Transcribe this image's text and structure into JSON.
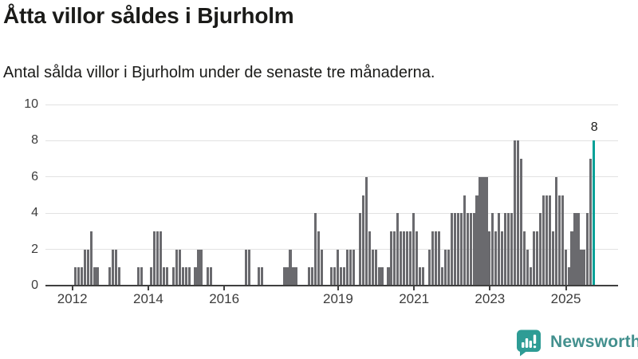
{
  "header": {
    "title": "Åtta villor såldes i Bjurholm",
    "subtitle": "Antal sålda villor i Bjurholm under de senaste tre månaderna."
  },
  "footer": {
    "brand": "Newsworthy"
  },
  "colors": {
    "bar": "#6a6a6e",
    "highlight": "#00a097",
    "grid": "#e2e2e2",
    "axis": "#404040",
    "text": "#1b1b19",
    "tick_label": "#3c3c3c",
    "brand_teal": "#2e9c95",
    "brand_text": "#43908e"
  },
  "chart_data": {
    "type": "bar",
    "title": "Åtta villor såldes i Bjurholm",
    "subtitle": "Antal sålda villor i Bjurholm under de senaste tre månaderna.",
    "x_interval": "monthly",
    "x_start_month": "2011-05",
    "values": [
      0,
      0,
      0,
      0,
      0,
      0,
      0,
      0,
      0,
      1,
      1,
      1,
      2,
      2,
      3,
      1,
      1,
      0,
      0,
      0,
      1,
      2,
      2,
      1,
      0,
      0,
      0,
      0,
      0,
      1,
      1,
      0,
      0,
      1,
      3,
      3,
      3,
      1,
      1,
      0,
      1,
      2,
      2,
      1,
      1,
      1,
      0,
      1,
      2,
      2,
      0,
      1,
      1,
      0,
      0,
      0,
      0,
      0,
      0,
      0,
      0,
      0,
      0,
      2,
      2,
      0,
      0,
      1,
      1,
      0,
      0,
      0,
      0,
      0,
      0,
      1,
      1,
      2,
      1,
      1,
      0,
      0,
      0,
      1,
      1,
      4,
      3,
      2,
      0,
      0,
      1,
      1,
      2,
      1,
      1,
      2,
      2,
      2,
      0,
      4,
      5,
      6,
      3,
      2,
      2,
      1,
      1,
      0,
      1,
      3,
      3,
      4,
      3,
      3,
      3,
      3,
      4,
      3,
      1,
      1,
      0,
      2,
      3,
      3,
      3,
      1,
      2,
      2,
      4,
      4,
      4,
      4,
      5,
      4,
      4,
      4,
      5,
      6,
      6,
      6,
      3,
      4,
      3,
      4,
      3,
      4,
      4,
      4,
      8,
      8,
      7,
      3,
      2,
      1,
      3,
      3,
      4,
      5,
      5,
      5,
      3,
      6,
      5,
      5,
      2,
      1,
      3,
      4,
      4,
      2,
      2,
      4,
      7,
      8
    ],
    "highlight_last_bar": true,
    "last_bar_label": "8",
    "x_tick_labels": [
      "2012",
      "2014",
      "2016",
      "2019",
      "2021",
      "2023",
      "2025"
    ],
    "x_tick_month_indices": [
      8,
      32,
      56,
      92,
      116,
      140,
      164
    ],
    "y_ticks": [
      0,
      2,
      4,
      6,
      8,
      10
    ],
    "ylim": [
      0,
      10
    ],
    "x_slots_total": 181,
    "grid": "horizontal",
    "legend": "none"
  }
}
